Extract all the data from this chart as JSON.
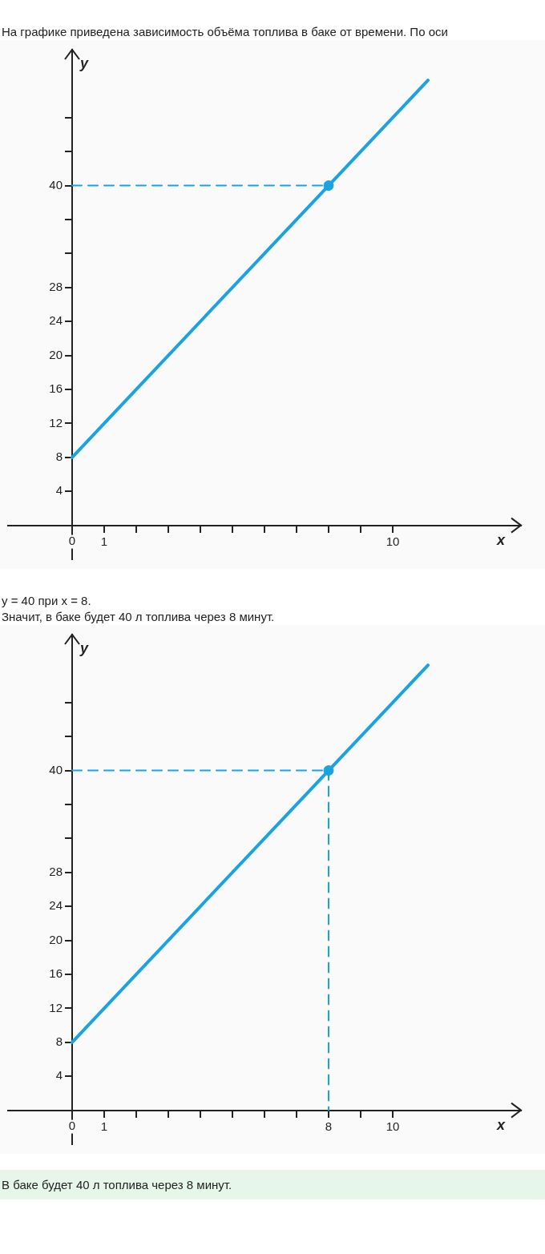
{
  "chart_data": [
    {
      "type": "line",
      "title": "На графике приведена зависимость объёма топлива в баке от времени. По оси",
      "xlabel": "x",
      "ylabel": "y",
      "xlim": [
        -2,
        14
      ],
      "ylim": [
        -4,
        56
      ],
      "xticks": [
        {
          "value": 0,
          "label": "0"
        },
        1,
        {
          "value": 2,
          "label": null
        },
        {
          "value": 3,
          "label": null
        },
        {
          "value": 4,
          "label": null
        },
        {
          "value": 5,
          "label": null
        },
        {
          "value": 6,
          "label": null
        },
        {
          "value": 7,
          "label": null
        },
        {
          "value": 8,
          "label": null
        },
        {
          "value": 9,
          "label": null
        },
        10
      ],
      "yticks": [
        4,
        8,
        12,
        16,
        20,
        24,
        28,
        {
          "value": 32,
          "label": null
        },
        {
          "value": 36,
          "label": null
        },
        40,
        {
          "value": 44,
          "label": null
        },
        {
          "value": 48,
          "label": null
        }
      ],
      "grid": false,
      "legend": false,
      "series": [
        {
          "type": "line",
          "color": "#1ba3e0",
          "x": [
            0,
            8,
            11.1
          ],
          "values": [
            8,
            40,
            52.4
          ],
          "marker": "none",
          "line_style": "solid"
        },
        {
          "type": "line",
          "color": "#1ba3e0",
          "x": [
            0,
            8
          ],
          "values": [
            40,
            40
          ],
          "marker": "none",
          "line_style": "dashed"
        },
        {
          "type": "scatter",
          "color": "#1ba3e0",
          "x": [
            8
          ],
          "values": [
            40
          ],
          "marker": "circle"
        }
      ]
    },
    {
      "type": "line",
      "title": "y = 40 при x = 8.",
      "subtitle": "Значит, в баке будет 40 л топлива через 8 минут.",
      "xlabel": "x",
      "ylabel": "y",
      "xlim": [
        -2,
        14
      ],
      "ylim": [
        -4,
        56
      ],
      "xticks": [
        {
          "value": 0,
          "label": "0"
        },
        1,
        {
          "value": 2,
          "label": null
        },
        {
          "value": 3,
          "label": null
        },
        {
          "value": 4,
          "label": null
        },
        {
          "value": 5,
          "label": null
        },
        {
          "value": 6,
          "label": null
        },
        {
          "value": 7,
          "label": null
        },
        8,
        {
          "value": 9,
          "label": null
        },
        10
      ],
      "yticks": [
        4,
        8,
        12,
        16,
        20,
        24,
        28,
        {
          "value": 32,
          "label": null
        },
        {
          "value": 36,
          "label": null
        },
        40,
        {
          "value": 44,
          "label": null
        },
        {
          "value": 48,
          "label": null
        }
      ],
      "grid": false,
      "legend": false,
      "annotations": [
        "В баке будет 40 л топлива через 8 минут."
      ],
      "series": [
        {
          "type": "line",
          "color": "#1ba3e0",
          "x": [
            0,
            8,
            11.1
          ],
          "values": [
            8,
            40,
            52.4
          ],
          "marker": "none",
          "line_style": "solid"
        },
        {
          "type": "line",
          "color": "#1ba3e0",
          "x": [
            0,
            8,
            8
          ],
          "values": [
            40,
            40,
            0
          ],
          "marker": "none",
          "line_style": "dashed"
        },
        {
          "type": "scatter",
          "color": "#1ba3e0",
          "x": [
            8
          ],
          "values": [
            40
          ],
          "marker": "circle"
        }
      ]
    }
  ]
}
